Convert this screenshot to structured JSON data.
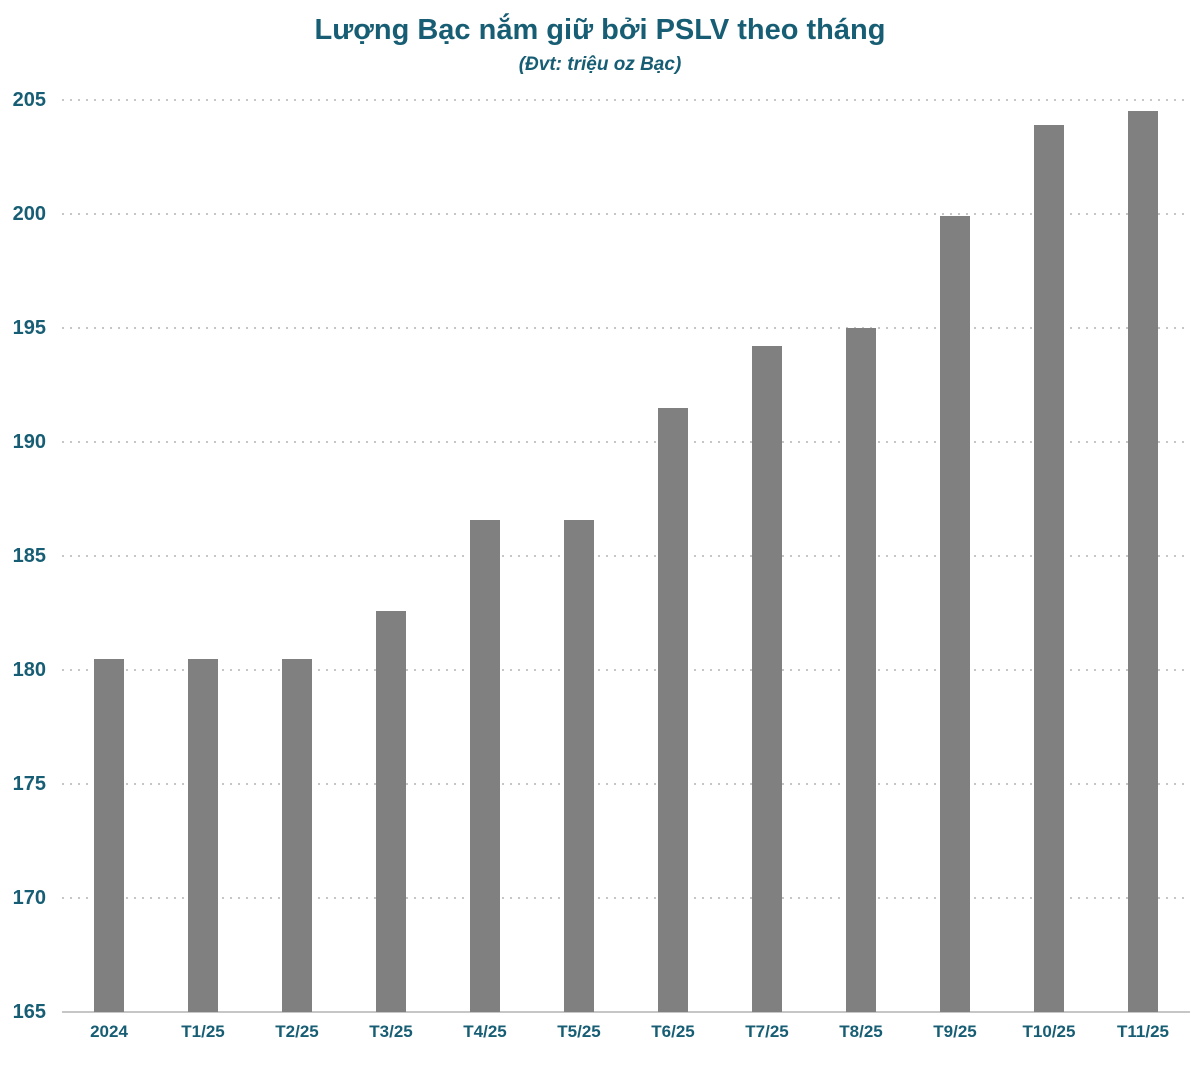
{
  "page": {
    "title": "Lượng Bạc nắm giữ bởi PSLV theo tháng",
    "subtitle": "(Đvt: triệu oz Bạc)"
  },
  "colors": {
    "accent_text": "#175E74",
    "bar": "#808080",
    "gridline": "#c6c6c6"
  },
  "chart_data": {
    "type": "bar",
    "title": "Lượng Bạc nắm giữ bởi PSLV theo tháng",
    "subtitle": "(Đvt: triệu oz Bạc)",
    "categories": [
      "2024",
      "T1/25",
      "T2/25",
      "T3/25",
      "T4/25",
      "T5/25",
      "T6/25",
      "T7/25",
      "T8/25",
      "T9/25",
      "T10/25",
      "T11/25"
    ],
    "values": [
      180.5,
      180.5,
      180.5,
      182.6,
      186.6,
      186.6,
      191.5,
      194.2,
      195.0,
      199.9,
      203.9,
      204.5
    ],
    "xlabel": "",
    "ylabel": "",
    "ylim": [
      165,
      205
    ],
    "ytick_step": 5,
    "yticks": [
      165,
      170,
      175,
      180,
      185,
      190,
      195,
      200,
      205
    ],
    "grid": "horizontal-dotted",
    "legend": "none",
    "bar_color": "#808080"
  }
}
